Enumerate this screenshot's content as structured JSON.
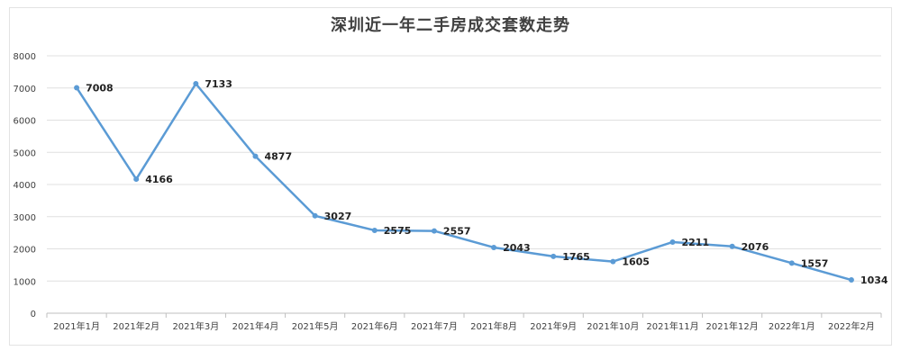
{
  "chart_data": {
    "type": "line",
    "title": "深圳近一年二手房成交套数走势",
    "xlabel": "",
    "ylabel": "",
    "categories": [
      "2021年1月",
      "2021年2月",
      "2021年3月",
      "2021年4月",
      "2021年5月",
      "2021年6月",
      "2021年7月",
      "2021年8月",
      "2021年9月",
      "2021年10月",
      "2021年11月",
      "2021年12月",
      "2022年1月",
      "2022年2月"
    ],
    "series": [
      {
        "values": [
          7008,
          4166,
          7133,
          4877,
          3027,
          2575,
          2557,
          2043,
          1765,
          1605,
          2211,
          2076,
          1557,
          1034
        ]
      }
    ],
    "ylim": [
      0,
      8000
    ],
    "yticks": [
      0,
      1000,
      2000,
      3000,
      4000,
      5000,
      6000,
      7000,
      8000
    ],
    "grid": true,
    "legend": "none",
    "line_color": "#5b9bd5"
  }
}
